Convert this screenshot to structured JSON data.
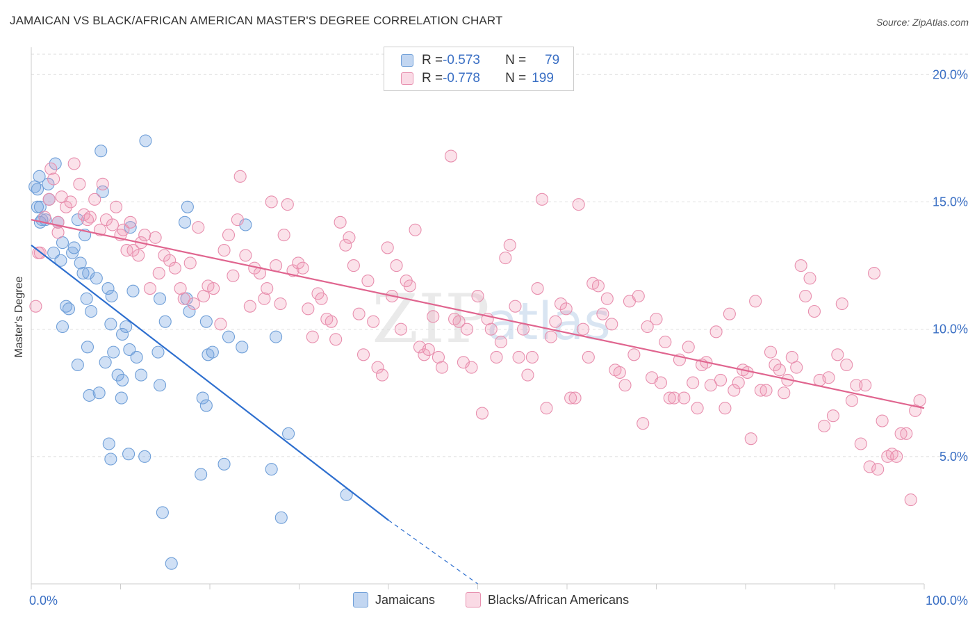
{
  "title": "JAMAICAN VS BLACK/AFRICAN AMERICAN MASTER'S DEGREE CORRELATION CHART",
  "source": "Source: ZipAtlas.com",
  "watermark": {
    "zip": "ZIP",
    "atlas": "atlas"
  },
  "colors": {
    "blue_fill": "rgba(120,165,225,0.35)",
    "blue_stroke": "#6f9fd8",
    "blue_line": "#2e6fcf",
    "pink_fill": "rgba(240,150,180,0.28)",
    "pink_stroke": "#e88fae",
    "pink_line": "#e0658f",
    "axis_label": "#3a6fc4",
    "grid": "#dddddd"
  },
  "legend": {
    "rows": [
      {
        "r_label": "R = ",
        "r_value": "-0.573",
        "n_label": "N = ",
        "n_value": "79",
        "swatch": "blue"
      },
      {
        "r_label": "R = ",
        "r_value": "-0.778",
        "n_label": "N = ",
        "n_value": "199",
        "swatch": "pink"
      }
    ]
  },
  "bottom_legend": [
    {
      "label": "Jamaicans",
      "swatch": "blue"
    },
    {
      "label": "Blacks/African Americans",
      "swatch": "pink"
    }
  ],
  "chart_data": {
    "type": "scatter",
    "title": "JAMAICAN VS BLACK/AFRICAN AMERICAN MASTER'S DEGREE CORRELATION CHART",
    "xlabel": "",
    "ylabel": "Master's Degree",
    "xlim": [
      0,
      100
    ],
    "ylim": [
      0,
      20.8
    ],
    "x_tick_labels": [
      "0.0%",
      "100.0%"
    ],
    "y_ticks": [
      5,
      10,
      15,
      20
    ],
    "y_tick_labels": [
      "5.0%",
      "10.0%",
      "15.0%",
      "20.0%"
    ],
    "grid": true,
    "legend_position": "top-center",
    "series": [
      {
        "name": "Jamaicans",
        "color": "blue",
        "R": -0.573,
        "N": 79,
        "trend": {
          "x0": 0,
          "y0": 13.3,
          "x1": 40,
          "y1": 2.5,
          "dash_to_x": 50,
          "dash_to_y": 0
        },
        "points": [
          [
            0.4,
            15.6
          ],
          [
            0.9,
            16.0
          ],
          [
            0.7,
            14.8
          ],
          [
            1.2,
            14.3
          ],
          [
            1.0,
            14.2
          ],
          [
            1.6,
            14.3
          ],
          [
            1.9,
            15.7
          ],
          [
            2.0,
            15.1
          ],
          [
            2.7,
            16.5
          ],
          [
            3.0,
            14.2
          ],
          [
            2.5,
            13.0
          ],
          [
            3.3,
            12.7
          ],
          [
            3.5,
            13.4
          ],
          [
            3.9,
            10.9
          ],
          [
            4.2,
            10.8
          ],
          [
            3.5,
            10.1
          ],
          [
            4.6,
            13.0
          ],
          [
            5.2,
            14.3
          ],
          [
            4.8,
            13.2
          ],
          [
            5.5,
            12.6
          ],
          [
            5.8,
            12.2
          ],
          [
            6.0,
            13.7
          ],
          [
            6.2,
            11.2
          ],
          [
            6.4,
            12.2
          ],
          [
            6.7,
            10.7
          ],
          [
            7.3,
            12.0
          ],
          [
            7.8,
            17.0
          ],
          [
            8.0,
            15.4
          ],
          [
            8.6,
            11.6
          ],
          [
            9.0,
            11.3
          ],
          [
            6.3,
            9.3
          ],
          [
            5.2,
            8.6
          ],
          [
            8.3,
            8.7
          ],
          [
            9.2,
            9.1
          ],
          [
            8.9,
            10.2
          ],
          [
            10.2,
            9.8
          ],
          [
            10.6,
            10.1
          ],
          [
            11.0,
            9.2
          ],
          [
            11.4,
            11.5
          ],
          [
            11.1,
            14.0
          ],
          [
            12.8,
            17.4
          ],
          [
            9.7,
            8.2
          ],
          [
            10.2,
            8.0
          ],
          [
            12.3,
            8.2
          ],
          [
            11.8,
            8.9
          ],
          [
            14.2,
            9.1
          ],
          [
            14.4,
            7.8
          ],
          [
            15.0,
            10.3
          ],
          [
            10.1,
            7.3
          ],
          [
            14.4,
            11.2
          ],
          [
            17.4,
            11.2
          ],
          [
            17.7,
            10.7
          ],
          [
            17.2,
            14.2
          ],
          [
            17.5,
            14.8
          ],
          [
            6.5,
            7.4
          ],
          [
            7.6,
            7.5
          ],
          [
            8.7,
            5.5
          ],
          [
            8.9,
            4.9
          ],
          [
            10.9,
            5.1
          ],
          [
            12.7,
            5.0
          ],
          [
            19.2,
            7.3
          ],
          [
            19.6,
            10.3
          ],
          [
            19.8,
            9.0
          ],
          [
            20.3,
            9.1
          ],
          [
            19.6,
            7.0
          ],
          [
            22.1,
            9.7
          ],
          [
            23.6,
            9.3
          ],
          [
            24.0,
            14.1
          ],
          [
            27.4,
            9.7
          ],
          [
            19.0,
            4.3
          ],
          [
            21.6,
            4.7
          ],
          [
            26.9,
            4.5
          ],
          [
            28.0,
            2.6
          ],
          [
            28.8,
            5.9
          ],
          [
            35.3,
            3.5
          ],
          [
            14.7,
            2.8
          ],
          [
            15.7,
            0.8
          ],
          [
            1.0,
            14.8
          ],
          [
            0.7,
            15.5
          ]
        ]
      },
      {
        "name": "Blacks/African Americans",
        "color": "pink",
        "R": -0.778,
        "N": 199,
        "trend": {
          "x0": 0,
          "y0": 14.3,
          "x1": 100,
          "y1": 6.9
        },
        "points": [
          [
            0.5,
            10.9
          ],
          [
            0.8,
            13.0
          ],
          [
            1.5,
            14.4
          ],
          [
            2.0,
            15.1
          ],
          [
            2.2,
            16.3
          ],
          [
            2.5,
            15.9
          ],
          [
            3.0,
            14.2
          ],
          [
            3.4,
            15.2
          ],
          [
            3.9,
            14.8
          ],
          [
            4.4,
            15.0
          ],
          [
            4.8,
            16.5
          ],
          [
            5.4,
            15.7
          ],
          [
            5.9,
            14.5
          ],
          [
            6.3,
            14.3
          ],
          [
            6.6,
            14.4
          ],
          [
            7.1,
            15.1
          ],
          [
            7.7,
            13.9
          ],
          [
            8.0,
            15.7
          ],
          [
            8.4,
            14.3
          ],
          [
            9.1,
            14.1
          ],
          [
            9.5,
            14.8
          ],
          [
            10.0,
            13.7
          ],
          [
            10.3,
            13.9
          ],
          [
            10.7,
            13.1
          ],
          [
            11.1,
            14.2
          ],
          [
            11.4,
            13.1
          ],
          [
            12.0,
            12.9
          ],
          [
            12.3,
            13.4
          ],
          [
            12.7,
            13.7
          ],
          [
            13.3,
            11.6
          ],
          [
            13.9,
            13.6
          ],
          [
            14.3,
            12.2
          ],
          [
            14.9,
            12.9
          ],
          [
            15.5,
            12.7
          ],
          [
            16.1,
            12.4
          ],
          [
            16.7,
            11.6
          ],
          [
            17.1,
            11.2
          ],
          [
            17.8,
            12.6
          ],
          [
            18.2,
            11.0
          ],
          [
            18.7,
            14.0
          ],
          [
            19.3,
            11.3
          ],
          [
            19.8,
            11.7
          ],
          [
            20.4,
            11.6
          ],
          [
            21.2,
            10.2
          ],
          [
            21.6,
            13.1
          ],
          [
            22.1,
            13.7
          ],
          [
            22.6,
            12.1
          ],
          [
            23.1,
            14.3
          ],
          [
            23.4,
            16.0
          ],
          [
            24.0,
            12.9
          ],
          [
            24.5,
            10.9
          ],
          [
            25.0,
            12.4
          ],
          [
            25.6,
            12.2
          ],
          [
            26.1,
            11.2
          ],
          [
            26.4,
            11.6
          ],
          [
            26.9,
            15.0
          ],
          [
            27.4,
            12.5
          ],
          [
            27.9,
            11.0
          ],
          [
            28.3,
            13.7
          ],
          [
            28.7,
            14.9
          ],
          [
            29.3,
            12.3
          ],
          [
            29.9,
            12.6
          ],
          [
            30.4,
            12.4
          ],
          [
            31.0,
            10.8
          ],
          [
            31.5,
            9.7
          ],
          [
            32.1,
            11.4
          ],
          [
            32.5,
            11.2
          ],
          [
            33.1,
            10.4
          ],
          [
            33.6,
            10.3
          ],
          [
            34.1,
            9.6
          ],
          [
            34.6,
            14.2
          ],
          [
            35.2,
            13.3
          ],
          [
            35.6,
            13.6
          ],
          [
            36.1,
            12.5
          ],
          [
            36.7,
            10.6
          ],
          [
            37.2,
            9.0
          ],
          [
            37.7,
            11.9
          ],
          [
            38.3,
            10.3
          ],
          [
            38.8,
            8.5
          ],
          [
            39.3,
            8.2
          ],
          [
            39.9,
            13.2
          ],
          [
            40.4,
            11.3
          ],
          [
            40.9,
            12.5
          ],
          [
            41.4,
            10.0
          ],
          [
            42.0,
            11.9
          ],
          [
            42.4,
            11.7
          ],
          [
            43.0,
            13.9
          ],
          [
            43.5,
            9.3
          ],
          [
            44.0,
            9.0
          ],
          [
            44.5,
            9.2
          ],
          [
            45.0,
            10.5
          ],
          [
            45.6,
            8.9
          ],
          [
            46.0,
            8.5
          ],
          [
            47.0,
            16.8
          ],
          [
            47.4,
            10.4
          ],
          [
            47.9,
            10.3
          ],
          [
            48.4,
            8.7
          ],
          [
            48.8,
            10.0
          ],
          [
            49.3,
            8.5
          ],
          [
            50.0,
            11.3
          ],
          [
            50.5,
            6.7
          ],
          [
            51.1,
            10.4
          ],
          [
            51.5,
            10.0
          ],
          [
            52.1,
            8.9
          ],
          [
            52.6,
            9.5
          ],
          [
            53.1,
            12.8
          ],
          [
            53.6,
            13.3
          ],
          [
            54.2,
            10.9
          ],
          [
            54.6,
            8.9
          ],
          [
            55.1,
            10.0
          ],
          [
            55.6,
            8.2
          ],
          [
            56.1,
            8.9
          ],
          [
            56.7,
            11.6
          ],
          [
            57.2,
            15.1
          ],
          [
            57.7,
            6.9
          ],
          [
            58.2,
            9.7
          ],
          [
            58.7,
            10.3
          ],
          [
            59.3,
            11.0
          ],
          [
            59.9,
            10.8
          ],
          [
            60.4,
            7.3
          ],
          [
            60.9,
            7.3
          ],
          [
            61.3,
            14.9
          ],
          [
            61.8,
            10.0
          ],
          [
            62.4,
            8.9
          ],
          [
            62.9,
            11.8
          ],
          [
            63.5,
            11.7
          ],
          [
            64.0,
            10.6
          ],
          [
            64.5,
            11.2
          ],
          [
            65.0,
            10.2
          ],
          [
            65.4,
            8.4
          ],
          [
            65.9,
            8.3
          ],
          [
            66.5,
            7.8
          ],
          [
            67.0,
            11.1
          ],
          [
            67.5,
            9.0
          ],
          [
            68.0,
            11.3
          ],
          [
            68.5,
            6.3
          ],
          [
            69.0,
            10.1
          ],
          [
            69.5,
            8.1
          ],
          [
            70.0,
            10.4
          ],
          [
            70.5,
            7.9
          ],
          [
            71.0,
            9.5
          ],
          [
            71.5,
            7.3
          ],
          [
            72.0,
            7.3
          ],
          [
            72.6,
            8.8
          ],
          [
            73.1,
            7.3
          ],
          [
            73.6,
            9.3
          ],
          [
            74.1,
            7.9
          ],
          [
            74.6,
            6.9
          ],
          [
            75.1,
            8.6
          ],
          [
            75.6,
            8.7
          ],
          [
            76.1,
            7.8
          ],
          [
            76.7,
            9.9
          ],
          [
            77.2,
            8.0
          ],
          [
            77.7,
            6.9
          ],
          [
            78.2,
            10.6
          ],
          [
            78.7,
            7.6
          ],
          [
            79.2,
            7.9
          ],
          [
            79.7,
            8.4
          ],
          [
            80.2,
            8.3
          ],
          [
            80.6,
            5.7
          ],
          [
            81.1,
            11.1
          ],
          [
            81.7,
            7.6
          ],
          [
            82.3,
            7.6
          ],
          [
            82.8,
            9.1
          ],
          [
            83.3,
            8.6
          ],
          [
            83.8,
            8.4
          ],
          [
            84.3,
            7.5
          ],
          [
            84.7,
            8.0
          ],
          [
            85.2,
            8.9
          ],
          [
            85.7,
            8.5
          ],
          [
            86.2,
            12.5
          ],
          [
            86.7,
            11.3
          ],
          [
            87.2,
            12.0
          ],
          [
            87.7,
            10.7
          ],
          [
            88.3,
            8.0
          ],
          [
            88.8,
            6.2
          ],
          [
            89.3,
            8.1
          ],
          [
            89.8,
            6.6
          ],
          [
            90.3,
            9.0
          ],
          [
            90.8,
            11.0
          ],
          [
            91.3,
            8.6
          ],
          [
            91.9,
            7.2
          ],
          [
            92.4,
            7.8
          ],
          [
            92.9,
            5.5
          ],
          [
            93.4,
            7.8
          ],
          [
            93.9,
            4.6
          ],
          [
            94.4,
            12.2
          ],
          [
            94.8,
            4.5
          ],
          [
            95.3,
            6.4
          ],
          [
            95.9,
            5.0
          ],
          [
            96.4,
            5.1
          ],
          [
            96.9,
            5.0
          ],
          [
            97.4,
            5.9
          ],
          [
            98.0,
            5.9
          ],
          [
            98.5,
            3.3
          ],
          [
            99.0,
            6.8
          ],
          [
            99.5,
            7.2
          ],
          [
            1.0,
            13.0
          ],
          [
            3.0,
            13.8
          ]
        ]
      }
    ]
  }
}
